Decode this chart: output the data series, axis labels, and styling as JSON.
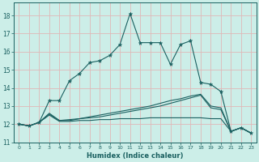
{
  "xlabel": "Humidex (Indice chaleur)",
  "xlim": [
    -0.5,
    23.5
  ],
  "ylim": [
    11,
    18.7
  ],
  "yticks": [
    11,
    12,
    13,
    14,
    15,
    16,
    17,
    18
  ],
  "xticks": [
    0,
    1,
    2,
    3,
    4,
    5,
    6,
    7,
    8,
    9,
    10,
    11,
    12,
    13,
    14,
    15,
    16,
    17,
    18,
    19,
    20,
    21,
    22,
    23
  ],
  "bg_color": "#cceee8",
  "grid_color": "#e0b8b8",
  "line_color": "#1a6060",
  "line1_y": [
    12.0,
    11.9,
    12.1,
    13.3,
    13.3,
    14.4,
    14.8,
    15.4,
    15.5,
    15.8,
    16.4,
    18.1,
    16.5,
    16.5,
    16.5,
    15.3,
    16.4,
    16.6,
    14.3,
    14.2,
    13.8,
    11.6,
    11.8,
    11.5
  ],
  "line2_y": [
    12.0,
    11.9,
    12.1,
    12.6,
    12.2,
    12.25,
    12.3,
    12.4,
    12.5,
    12.6,
    12.7,
    12.8,
    12.9,
    13.0,
    13.15,
    13.3,
    13.4,
    13.55,
    13.65,
    13.0,
    12.9,
    11.6,
    11.8,
    11.5
  ],
  "line3_y": [
    12.0,
    11.9,
    12.1,
    12.5,
    12.15,
    12.15,
    12.2,
    12.2,
    12.25,
    12.25,
    12.3,
    12.3,
    12.3,
    12.35,
    12.35,
    12.35,
    12.35,
    12.35,
    12.35,
    12.3,
    12.3,
    11.6,
    11.8,
    11.5
  ],
  "line4_y": [
    12.0,
    11.9,
    12.1,
    12.55,
    12.2,
    12.2,
    12.3,
    12.35,
    12.4,
    12.5,
    12.6,
    12.7,
    12.8,
    12.9,
    13.0,
    13.15,
    13.3,
    13.45,
    13.6,
    12.9,
    12.8,
    11.6,
    11.8,
    11.5
  ]
}
